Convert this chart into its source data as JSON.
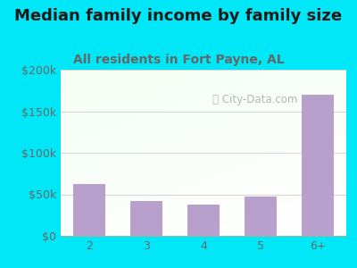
{
  "title": "Median family income by family size",
  "subtitle": "All residents in Fort Payne, AL",
  "categories": [
    "2",
    "3",
    "4",
    "5",
    "6+"
  ],
  "values": [
    62000,
    42000,
    38000,
    47000,
    170000
  ],
  "bar_color": "#b8a0cc",
  "background_outer": "#00e8f8",
  "title_color": "#1a1a1a",
  "subtitle_color": "#666666",
  "tick_color": "#666666",
  "ylim": [
    0,
    200000
  ],
  "yticks": [
    0,
    50000,
    100000,
    150000,
    200000
  ],
  "ytick_labels": [
    "$0",
    "$50k",
    "$100k",
    "$150k",
    "$200k"
  ],
  "watermark": "City-Data.com",
  "title_fontsize": 13,
  "subtitle_fontsize": 10,
  "tick_fontsize": 9
}
